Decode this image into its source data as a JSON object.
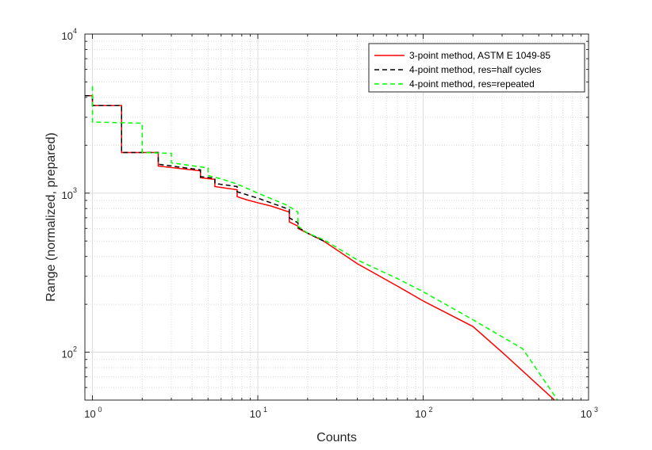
{
  "chart_data": {
    "type": "line",
    "title": "",
    "xlabel": "Counts",
    "ylabel": "Range (normalized, prepared)",
    "xscale": "log",
    "yscale": "log",
    "xlim": [
      0.9,
      1000
    ],
    "ylim": [
      50,
      10000
    ],
    "grid": "on (major and minor)",
    "legend_position": "top-right",
    "x_ticks": [
      {
        "base": "10",
        "exp": "0",
        "value": 1
      },
      {
        "base": "10",
        "exp": "1",
        "value": 10
      },
      {
        "base": "10",
        "exp": "2",
        "value": 100
      },
      {
        "base": "10",
        "exp": "3",
        "value": 1000
      }
    ],
    "y_ticks": [
      {
        "base": "10",
        "exp": "2",
        "value": 100
      },
      {
        "base": "10",
        "exp": "3",
        "value": 1000
      },
      {
        "base": "10",
        "exp": "4",
        "value": 10000
      }
    ],
    "series": [
      {
        "name": "3-point method, ASTM E 1049-85",
        "color": "#ff0000",
        "style": "solid",
        "x": [
          0.9,
          1,
          1,
          1.5,
          1.5,
          2.5,
          2.5,
          4.5,
          4.5,
          5.5,
          5.5,
          7.5,
          7.5,
          8.5,
          10,
          12,
          15.5,
          15.5,
          17.5,
          17.5,
          20,
          25,
          40,
          70,
          100,
          200,
          300,
          650
        ],
        "y": [
          4100,
          4100,
          3550,
          3550,
          1800,
          1800,
          1480,
          1380,
          1250,
          1220,
          1100,
          1050,
          950,
          910,
          870,
          830,
          760,
          660,
          620,
          600,
          560,
          500,
          360,
          260,
          210,
          145,
          100,
          48
        ]
      },
      {
        "name": "4-point method, res=half cycles",
        "color": "#000000",
        "style": "dashed",
        "x": [
          0.9,
          1,
          1,
          1.5,
          1.5,
          2.5,
          2.5,
          4.5,
          4.5,
          5.5,
          5.5,
          7.5,
          7.5,
          10,
          15.5,
          15.5,
          17.5,
          17.5,
          20,
          25
        ],
        "y": [
          4100,
          4100,
          3550,
          3550,
          1800,
          1800,
          1520,
          1400,
          1270,
          1240,
          1150,
          1100,
          1020,
          930,
          790,
          700,
          650,
          610,
          560,
          500
        ]
      },
      {
        "name": "4-point method, res=repeated",
        "color": "#00ff00",
        "style": "dashed",
        "x": [
          1,
          1,
          2,
          2,
          3,
          3,
          5,
          5,
          6,
          7.5,
          10,
          15,
          17.5,
          17.5,
          20,
          25,
          40,
          70,
          100,
          200,
          400,
          650
        ],
        "y": [
          4700,
          2800,
          2750,
          1800,
          1780,
          1550,
          1440,
          1290,
          1230,
          1140,
          1000,
          840,
          760,
          620,
          560,
          510,
          380,
          290,
          240,
          160,
          105,
          50
        ]
      }
    ]
  }
}
